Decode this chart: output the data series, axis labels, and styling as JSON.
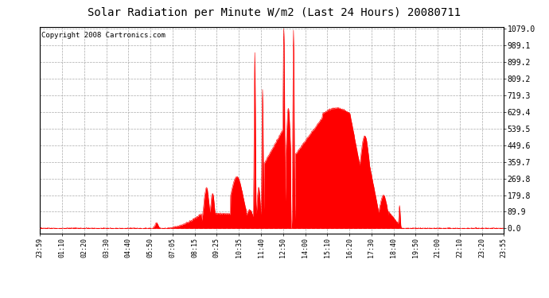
{
  "title": "Solar Radiation per Minute W/m2 (Last 24 Hours) 20080711",
  "copyright": "Copyright 2008 Cartronics.com",
  "yticks": [
    0.0,
    89.9,
    179.8,
    269.8,
    359.7,
    449.6,
    539.5,
    629.4,
    719.3,
    809.2,
    899.2,
    989.1,
    1079.0
  ],
  "ymax": 1079.0,
  "fill_color": "#FF0000",
  "line_color": "#FF0000",
  "bg_color": "#FFFFFF",
  "plot_bg_color": "#FFFFFF",
  "grid_color": "#AAAAAA",
  "dashed_line_color": "#FF0000",
  "xtick_labels": [
    "23:59",
    "01:10",
    "02:20",
    "03:30",
    "04:40",
    "05:50",
    "07:05",
    "08:15",
    "09:25",
    "10:35",
    "11:40",
    "12:50",
    "14:00",
    "15:10",
    "16:20",
    "17:30",
    "18:40",
    "19:50",
    "21:00",
    "22:10",
    "23:20",
    "23:55"
  ],
  "title_fontsize": 10,
  "copyright_fontsize": 6.5
}
